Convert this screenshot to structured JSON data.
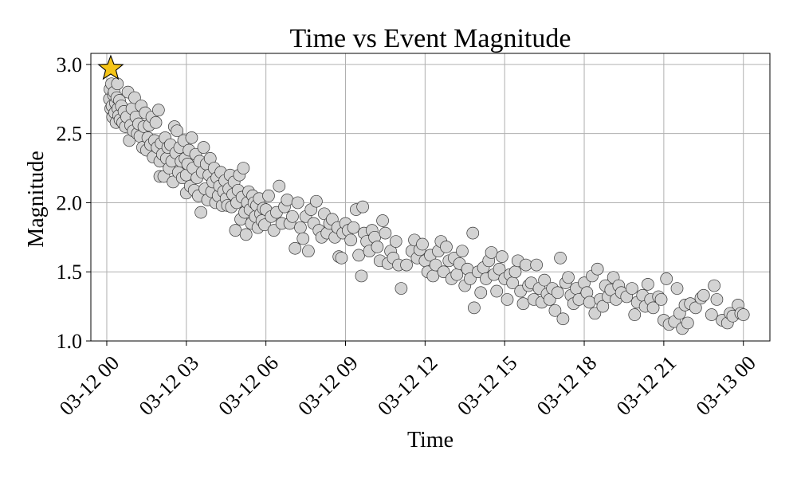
{
  "chart_data": {
    "type": "scatter",
    "title": "Time vs Event Magnitude",
    "xlabel": "Time",
    "ylabel": "Magnitude",
    "x_unit": "hours since 03-12 00",
    "xlim": [
      -0.6,
      25
    ],
    "ylim": [
      1.0,
      3.08
    ],
    "x_ticks": [
      {
        "hour": 0,
        "label": "03-12 00"
      },
      {
        "hour": 3,
        "label": "03-12 03"
      },
      {
        "hour": 6,
        "label": "03-12 06"
      },
      {
        "hour": 9,
        "label": "03-12 09"
      },
      {
        "hour": 12,
        "label": "03-12 12"
      },
      {
        "hour": 15,
        "label": "03-12 15"
      },
      {
        "hour": 18,
        "label": "03-12 18"
      },
      {
        "hour": 21,
        "label": "03-12 21"
      },
      {
        "hour": 24,
        "label": "03-13 00"
      }
    ],
    "y_ticks": [
      {
        "value": 1.0,
        "label": "1.0"
      },
      {
        "value": 1.5,
        "label": "1.5"
      },
      {
        "value": 2.0,
        "label": "2.0"
      },
      {
        "value": 2.5,
        "label": "2.5"
      },
      {
        "value": 3.0,
        "label": "3.0"
      }
    ],
    "grid": true,
    "mainshock": {
      "hour": 0.15,
      "magnitude": 2.97,
      "marker": "star",
      "color": "#f5c518"
    },
    "point_color": "#d3d3d3",
    "series": [
      {
        "values": [
          [
            0.1,
            2.75
          ],
          [
            0.12,
            2.82
          ],
          [
            0.15,
            2.68
          ],
          [
            0.18,
            2.86
          ],
          [
            0.2,
            2.7
          ],
          [
            0.22,
            2.62
          ],
          [
            0.25,
            2.78
          ],
          [
            0.28,
            2.8
          ],
          [
            0.3,
            2.65
          ],
          [
            0.33,
            2.72
          ],
          [
            0.35,
            2.58
          ],
          [
            0.38,
            2.76
          ],
          [
            0.4,
            2.86
          ],
          [
            0.42,
            2.68
          ],
          [
            0.45,
            2.63
          ],
          [
            0.48,
            2.74
          ],
          [
            0.5,
            2.6
          ],
          [
            0.55,
            2.7
          ],
          [
            0.6,
            2.58
          ],
          [
            0.65,
            2.66
          ],
          [
            0.7,
            2.55
          ],
          [
            0.75,
            2.62
          ],
          [
            0.8,
            2.8
          ],
          [
            0.85,
            2.45
          ],
          [
            0.9,
            2.56
          ],
          [
            0.95,
            2.68
          ],
          [
            1.0,
            2.52
          ],
          [
            1.05,
            2.76
          ],
          [
            1.1,
            2.62
          ],
          [
            1.15,
            2.5
          ],
          [
            1.2,
            2.57
          ],
          [
            1.25,
            2.48
          ],
          [
            1.3,
            2.7
          ],
          [
            1.35,
            2.4
          ],
          [
            1.4,
            2.55
          ],
          [
            1.45,
            2.65
          ],
          [
            1.5,
            2.38
          ],
          [
            1.55,
            2.47
          ],
          [
            1.6,
            2.56
          ],
          [
            1.65,
            2.42
          ],
          [
            1.7,
            2.62
          ],
          [
            1.75,
            2.33
          ],
          [
            1.8,
            2.45
          ],
          [
            1.85,
            2.58
          ],
          [
            1.9,
            2.4
          ],
          [
            1.95,
            2.67
          ],
          [
            2.0,
            2.3
          ],
          [
            2.0,
            2.19
          ],
          [
            2.05,
            2.43
          ],
          [
            2.1,
            2.35
          ],
          [
            2.15,
            2.19
          ],
          [
            2.2,
            2.47
          ],
          [
            2.25,
            2.32
          ],
          [
            2.3,
            2.4
          ],
          [
            2.35,
            2.25
          ],
          [
            2.4,
            2.42
          ],
          [
            2.45,
            2.3
          ],
          [
            2.5,
            2.15
          ],
          [
            2.55,
            2.55
          ],
          [
            2.6,
            2.36
          ],
          [
            2.65,
            2.52
          ],
          [
            2.7,
            2.22
          ],
          [
            2.75,
            2.4
          ],
          [
            2.8,
            2.3
          ],
          [
            2.85,
            2.18
          ],
          [
            2.9,
            2.45
          ],
          [
            2.95,
            2.32
          ],
          [
            3.0,
            2.2
          ],
          [
            3.0,
            2.07
          ],
          [
            3.05,
            2.28
          ],
          [
            3.1,
            2.38
          ],
          [
            3.15,
            2.12
          ],
          [
            3.2,
            2.47
          ],
          [
            3.25,
            2.25
          ],
          [
            3.3,
            2.09
          ],
          [
            3.35,
            2.35
          ],
          [
            3.4,
            2.18
          ],
          [
            3.45,
            2.05
          ],
          [
            3.5,
            2.3
          ],
          [
            3.55,
            1.93
          ],
          [
            3.6,
            2.22
          ],
          [
            3.65,
            2.4
          ],
          [
            3.7,
            2.1
          ],
          [
            3.75,
            2.28
          ],
          [
            3.8,
            2.02
          ],
          [
            3.85,
            2.2
          ],
          [
            3.9,
            2.32
          ],
          [
            3.95,
            2.08
          ],
          [
            4.0,
            2.15
          ],
          [
            4.05,
            2.25
          ],
          [
            4.1,
            2.0
          ],
          [
            4.15,
            2.18
          ],
          [
            4.2,
            2.05
          ],
          [
            4.25,
            2.12
          ],
          [
            4.3,
            2.22
          ],
          [
            4.35,
            1.98
          ],
          [
            4.4,
            2.08
          ],
          [
            4.45,
            2.16
          ],
          [
            4.5,
            2.03
          ],
          [
            4.55,
            1.98
          ],
          [
            4.6,
            2.1
          ],
          [
            4.65,
            2.2
          ],
          [
            4.7,
            1.97
          ],
          [
            4.75,
            2.06
          ],
          [
            4.8,
            2.15
          ],
          [
            4.85,
            1.8
          ],
          [
            4.9,
            2.0
          ],
          [
            4.95,
            2.09
          ],
          [
            5.0,
            2.2
          ],
          [
            5.05,
            1.88
          ],
          [
            5.1,
            2.04
          ],
          [
            5.15,
            2.25
          ],
          [
            5.2,
            1.93
          ],
          [
            5.25,
            1.77
          ],
          [
            5.3,
            2.0
          ],
          [
            5.35,
            2.08
          ],
          [
            5.4,
            1.95
          ],
          [
            5.45,
            1.85
          ],
          [
            5.5,
            2.05
          ],
          [
            5.55,
            2.0
          ],
          [
            5.6,
            1.9
          ],
          [
            5.65,
            1.98
          ],
          [
            5.7,
            1.82
          ],
          [
            5.75,
            2.03
          ],
          [
            5.8,
            1.92
          ],
          [
            5.85,
            1.87
          ],
          [
            5.9,
            1.96
          ],
          [
            5.95,
            1.84
          ],
          [
            6.0,
            1.95
          ],
          [
            6.1,
            2.05
          ],
          [
            6.2,
            1.9
          ],
          [
            6.3,
            1.8
          ],
          [
            6.4,
            1.93
          ],
          [
            6.5,
            2.12
          ],
          [
            6.6,
            1.85
          ],
          [
            6.7,
            1.97
          ],
          [
            6.8,
            2.02
          ],
          [
            6.9,
            1.85
          ],
          [
            7.0,
            1.9
          ],
          [
            7.1,
            1.67
          ],
          [
            7.2,
            2.0
          ],
          [
            7.3,
            1.82
          ],
          [
            7.4,
            1.74
          ],
          [
            7.5,
            1.9
          ],
          [
            7.6,
            1.65
          ],
          [
            7.7,
            1.95
          ],
          [
            7.8,
            1.85
          ],
          [
            7.9,
            2.01
          ],
          [
            8.0,
            1.8
          ],
          [
            8.1,
            1.75
          ],
          [
            8.2,
            1.92
          ],
          [
            8.3,
            1.78
          ],
          [
            8.4,
            1.85
          ],
          [
            8.5,
            1.88
          ],
          [
            8.6,
            1.75
          ],
          [
            8.7,
            1.82
          ],
          [
            8.75,
            1.61
          ],
          [
            8.85,
            1.6
          ],
          [
            8.9,
            1.78
          ],
          [
            9.0,
            1.85
          ],
          [
            9.1,
            1.8
          ],
          [
            9.2,
            1.73
          ],
          [
            9.3,
            1.82
          ],
          [
            9.4,
            1.95
          ],
          [
            9.5,
            1.62
          ],
          [
            9.6,
            1.47
          ],
          [
            9.65,
            1.97
          ],
          [
            9.7,
            1.78
          ],
          [
            9.8,
            1.72
          ],
          [
            9.9,
            1.65
          ],
          [
            10.0,
            1.8
          ],
          [
            10.1,
            1.75
          ],
          [
            10.2,
            1.68
          ],
          [
            10.3,
            1.58
          ],
          [
            10.4,
            1.87
          ],
          [
            10.5,
            1.78
          ],
          [
            10.6,
            1.56
          ],
          [
            10.7,
            1.65
          ],
          [
            10.8,
            1.6
          ],
          [
            10.9,
            1.72
          ],
          [
            11.0,
            1.55
          ],
          [
            11.1,
            1.38
          ],
          [
            11.3,
            1.55
          ],
          [
            11.5,
            1.65
          ],
          [
            11.6,
            1.73
          ],
          [
            11.7,
            1.6
          ],
          [
            11.8,
            1.66
          ],
          [
            11.9,
            1.7
          ],
          [
            12.0,
            1.58
          ],
          [
            12.1,
            1.5
          ],
          [
            12.2,
            1.62
          ],
          [
            12.3,
            1.47
          ],
          [
            12.4,
            1.55
          ],
          [
            12.5,
            1.65
          ],
          [
            12.6,
            1.72
          ],
          [
            12.7,
            1.5
          ],
          [
            12.8,
            1.68
          ],
          [
            12.9,
            1.58
          ],
          [
            13.0,
            1.45
          ],
          [
            13.1,
            1.6
          ],
          [
            13.2,
            1.48
          ],
          [
            13.3,
            1.56
          ],
          [
            13.4,
            1.65
          ],
          [
            13.5,
            1.4
          ],
          [
            13.6,
            1.52
          ],
          [
            13.7,
            1.45
          ],
          [
            13.8,
            1.78
          ],
          [
            13.85,
            1.24
          ],
          [
            14.0,
            1.5
          ],
          [
            14.1,
            1.35
          ],
          [
            14.2,
            1.53
          ],
          [
            14.3,
            1.45
          ],
          [
            14.4,
            1.58
          ],
          [
            14.5,
            1.64
          ],
          [
            14.6,
            1.48
          ],
          [
            14.7,
            1.36
          ],
          [
            14.8,
            1.52
          ],
          [
            14.9,
            1.61
          ],
          [
            15.0,
            1.45
          ],
          [
            15.1,
            1.3
          ],
          [
            15.2,
            1.48
          ],
          [
            15.3,
            1.42
          ],
          [
            15.4,
            1.5
          ],
          [
            15.5,
            1.58
          ],
          [
            15.6,
            1.36
          ],
          [
            15.7,
            1.27
          ],
          [
            15.8,
            1.55
          ],
          [
            15.9,
            1.4
          ],
          [
            16.0,
            1.42
          ],
          [
            16.1,
            1.3
          ],
          [
            16.2,
            1.55
          ],
          [
            16.3,
            1.38
          ],
          [
            16.4,
            1.28
          ],
          [
            16.5,
            1.44
          ],
          [
            16.6,
            1.34
          ],
          [
            16.7,
            1.3
          ],
          [
            16.8,
            1.38
          ],
          [
            16.9,
            1.22
          ],
          [
            17.0,
            1.35
          ],
          [
            17.1,
            1.6
          ],
          [
            17.2,
            1.16
          ],
          [
            17.3,
            1.42
          ],
          [
            17.4,
            1.46
          ],
          [
            17.5,
            1.33
          ],
          [
            17.6,
            1.27
          ],
          [
            17.7,
            1.38
          ],
          [
            17.8,
            1.3
          ],
          [
            18.0,
            1.42
          ],
          [
            18.1,
            1.35
          ],
          [
            18.2,
            1.28
          ],
          [
            18.3,
            1.47
          ],
          [
            18.4,
            1.2
          ],
          [
            18.5,
            1.52
          ],
          [
            18.6,
            1.3
          ],
          [
            18.7,
            1.25
          ],
          [
            18.8,
            1.4
          ],
          [
            18.9,
            1.32
          ],
          [
            19.0,
            1.37
          ],
          [
            19.1,
            1.46
          ],
          [
            19.2,
            1.3
          ],
          [
            19.3,
            1.4
          ],
          [
            19.4,
            1.35
          ],
          [
            19.6,
            1.32
          ],
          [
            19.8,
            1.38
          ],
          [
            19.9,
            1.19
          ],
          [
            20.0,
            1.28
          ],
          [
            20.2,
            1.33
          ],
          [
            20.3,
            1.25
          ],
          [
            20.4,
            1.41
          ],
          [
            20.5,
            1.3
          ],
          [
            20.6,
            1.24
          ],
          [
            20.8,
            1.32
          ],
          [
            20.9,
            1.3
          ],
          [
            21.0,
            1.15
          ],
          [
            21.1,
            1.45
          ],
          [
            21.2,
            1.12
          ],
          [
            21.4,
            1.14
          ],
          [
            21.5,
            1.38
          ],
          [
            21.6,
            1.2
          ],
          [
            21.7,
            1.09
          ],
          [
            21.8,
            1.26
          ],
          [
            21.9,
            1.13
          ],
          [
            22.0,
            1.27
          ],
          [
            22.2,
            1.24
          ],
          [
            22.4,
            1.31
          ],
          [
            22.5,
            1.33
          ],
          [
            22.8,
            1.19
          ],
          [
            22.9,
            1.4
          ],
          [
            23.0,
            1.3
          ],
          [
            23.2,
            1.15
          ],
          [
            23.4,
            1.13
          ],
          [
            23.5,
            1.2
          ],
          [
            23.6,
            1.18
          ],
          [
            23.8,
            1.26
          ],
          [
            23.9,
            1.2
          ],
          [
            24.0,
            1.19
          ]
        ]
      }
    ]
  }
}
